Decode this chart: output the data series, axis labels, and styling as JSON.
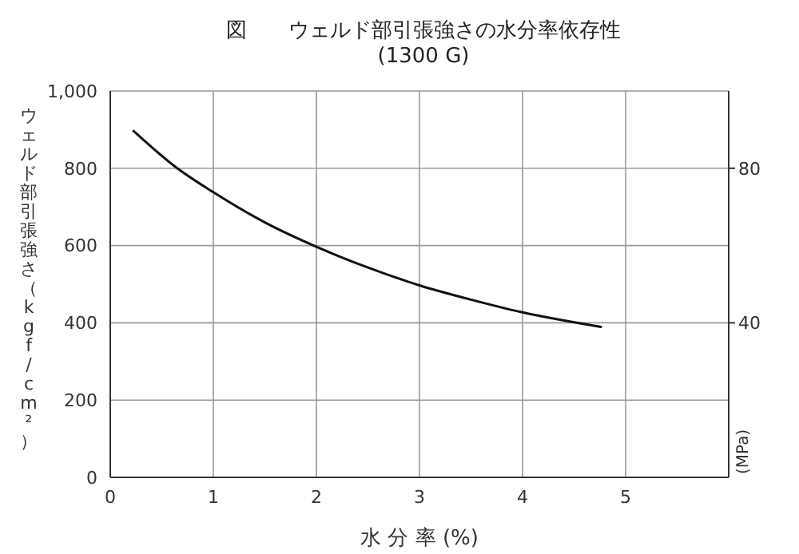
{
  "chart_data": {
    "type": "line",
    "title": "図　　ウェルド部引張強さの水分率依存性",
    "subtitle": "(1300 G)",
    "xlabel": "水 分 率 (%)",
    "ylabel": "ウェルド部引張強さ（kgf/cm²）",
    "y2label": "(MPa)",
    "x": [
      0.22,
      0.65,
      1,
      1.5,
      2,
      2.5,
      3,
      3.5,
      4,
      4.77
    ],
    "series": [
      {
        "color": "#111111",
        "values": [
          898,
          800,
          738,
          660,
          597,
          543,
          497,
          460,
          427,
          389
        ]
      }
    ],
    "xlim": [
      0,
      6
    ],
    "xticks": [
      0,
      1,
      2,
      3,
      4,
      5
    ],
    "ylim": [
      0,
      1000
    ],
    "yticks": [
      0,
      200,
      400,
      600,
      800,
      {
        "value": 1000,
        "label": "1,000"
      }
    ],
    "y2lim": [
      0,
      100
    ],
    "y2ticks": [
      40,
      80
    ],
    "grid": true,
    "marker": "none",
    "line_style": "solid"
  }
}
